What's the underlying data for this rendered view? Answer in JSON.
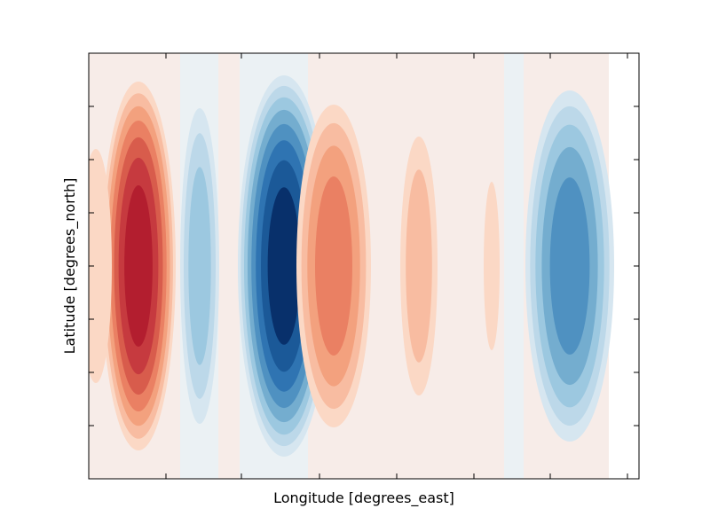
{
  "chart_data": {
    "type": "filled-contour",
    "title": "",
    "xlabel": "Longitude [degrees_east]",
    "ylabel": "Latitude [degrees_north]",
    "tick_labels_shown": false,
    "grid": false,
    "legend": "none",
    "colormap": "RdBu_r (diverging, red = positive, blue = negative)",
    "x_tick_count": 7,
    "y_tick_count": 7,
    "lobes": [
      {
        "sign": "positive",
        "peak_level": 0.85,
        "note": "strongest red lobe, left"
      },
      {
        "sign": "positive",
        "peak_level": 0.15,
        "note": "weak red lobe at far left edge"
      },
      {
        "sign": "negative",
        "peak_level": 0.35,
        "note": "narrow blue lobe"
      },
      {
        "sign": "negative",
        "peak_level": 0.95,
        "note": "strongest blue lobe, center-left"
      },
      {
        "sign": "positive",
        "peak_level": 0.5,
        "note": "red lobe right of center"
      },
      {
        "sign": "positive",
        "peak_level": 0.25,
        "note": "weak red lobe"
      },
      {
        "sign": "positive",
        "peak_level": 0.12,
        "note": "very weak narrow red lobe"
      },
      {
        "sign": "negative",
        "peak_level": 0.65,
        "note": "blue lobe, right"
      }
    ],
    "background_bands": [
      "positive",
      "negative",
      "positive",
      "negative",
      "positive",
      "negative",
      "positive"
    ]
  },
  "colors": {
    "pos": [
      "#f7ece8",
      "#fbd8c5",
      "#f8bca1",
      "#f3a17e",
      "#ea8063",
      "#d85c4c",
      "#c63a3f",
      "#b31e2f",
      "#8f0d24"
    ],
    "neg": [
      "#ebf1f4",
      "#d6e6f0",
      "#bcd8e9",
      "#9cc8e0",
      "#74adcf",
      "#4f91c1",
      "#2f74b2",
      "#1b5998",
      "#08306b"
    ]
  }
}
